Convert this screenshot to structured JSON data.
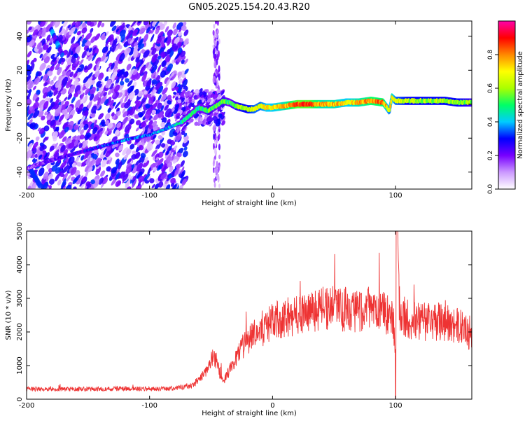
{
  "figure": {
    "title": "GN05.2025.154.20.43.R20"
  },
  "chart_data": [
    {
      "type": "heatmap",
      "xlabel": "Height of straight line (km)",
      "ylabel": "Frequency (Hz)",
      "xlim": [
        -200,
        162
      ],
      "ylim": [
        -50,
        49
      ],
      "x_ticks": [
        -200,
        -100,
        0,
        100
      ],
      "y_ticks": [
        -40,
        -20,
        0,
        20,
        40
      ],
      "x_tick_labels": [
        "-200",
        "-100",
        "0",
        "100"
      ],
      "y_tick_labels": [
        "-40",
        "-20",
        "0",
        "20",
        "40"
      ],
      "colorbar": {
        "label": "Normalized spectral amplitude",
        "range": [
          0,
          1
        ],
        "ticks": [
          0,
          0.2,
          0.4,
          0.6,
          0.8
        ],
        "tick_labels": [
          "0.0",
          "0.2",
          "0.4",
          "0.6",
          "0.8"
        ],
        "colormap": [
          "#ffffff",
          "#cc99ff",
          "#7700ff",
          "#0000ff",
          "#00ccff",
          "#00ff66",
          "#aaff00",
          "#ffff00",
          "#ff8800",
          "#ff0000",
          "#ff00aa"
        ]
      },
      "ridge": {
        "height_km": [
          -200,
          -180,
          -160,
          -140,
          -120,
          -100,
          -85,
          -75,
          -68,
          -60,
          -52,
          -46,
          -40,
          -35,
          -30,
          -25,
          -20,
          -15,
          -10,
          -5,
          0,
          10,
          20,
          30,
          40,
          50,
          60,
          70,
          80,
          90,
          95,
          97,
          100,
          110,
          120,
          130,
          140,
          150,
          162
        ],
        "frequency_hz": [
          -38,
          -33,
          -29,
          -25,
          -21,
          -18,
          -14,
          -11,
          -7,
          -2,
          -4,
          -1,
          2,
          1,
          -1,
          -2,
          -3,
          -3,
          -1,
          -2,
          -2,
          -1,
          0,
          0,
          0,
          0,
          1,
          1,
          2,
          1,
          -4,
          4,
          2,
          2,
          2,
          2,
          2,
          1,
          1
        ],
        "amplitude": [
          0.15,
          0.2,
          0.25,
          0.3,
          0.35,
          0.35,
          0.4,
          0.45,
          0.5,
          0.45,
          0.55,
          0.5,
          0.55,
          0.5,
          0.55,
          0.6,
          0.6,
          0.65,
          0.65,
          0.7,
          0.7,
          0.75,
          0.85,
          0.85,
          0.75,
          0.75,
          0.7,
          0.75,
          0.8,
          0.8,
          0.65,
          0.75,
          0.65,
          0.6,
          0.6,
          0.6,
          0.6,
          0.6,
          0.55
        ]
      }
    },
    {
      "type": "line",
      "xlabel": "Height of straight line (km)",
      "ylabel": "SNR (10 * v/v)",
      "xlim": [
        -200,
        162
      ],
      "ylim": [
        0,
        5000
      ],
      "x_ticks": [
        -200,
        -100,
        0,
        100
      ],
      "y_ticks": [
        0,
        1000,
        2000,
        3000,
        4000,
        5000
      ],
      "x_tick_labels": [
        "-200",
        "-100",
        "0",
        "100"
      ],
      "y_tick_labels": [
        "0",
        "1000",
        "2000",
        "3000",
        "4000",
        "5000"
      ],
      "color": "#ee3333",
      "series": [
        {
          "x": [
            -200,
            -180,
            -160,
            -140,
            -120,
            -100,
            -80,
            -65,
            -55,
            -48,
            -40,
            -30,
            -20,
            -10,
            0,
            10,
            20,
            30,
            40,
            50,
            60,
            70,
            80,
            90,
            98,
            100,
            101,
            103,
            110,
            120,
            130,
            140,
            150,
            155,
            160,
            162
          ],
          "y": [
            300,
            300,
            300,
            300,
            320,
            300,
            320,
            400,
            800,
            1300,
            500,
            1200,
            1800,
            2000,
            2300,
            2400,
            2500,
            2600,
            2700,
            2700,
            2650,
            2650,
            2700,
            2600,
            2500,
            1200,
            5000,
            2700,
            2400,
            2300,
            2300,
            2300,
            2200,
            2100,
            1900,
            1800
          ]
        }
      ]
    }
  ]
}
